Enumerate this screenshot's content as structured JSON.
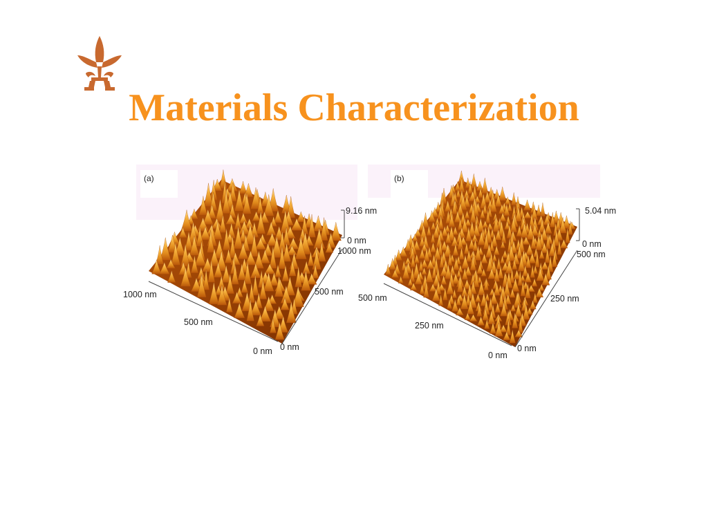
{
  "slide": {
    "title": "Materials Characterization",
    "title_color": "#F7921E",
    "logo": "maple-leaf-emblem",
    "logo_color": "#C8692F"
  },
  "figure": {
    "panel_a": {
      "label": "(a)",
      "z_max": "9.16 nm",
      "z_min": "0 nm",
      "axis_back": "1000 nm",
      "axis_right_mid": "500 nm",
      "axis_right_zero": "0 nm",
      "axis_left_end": "1000 nm",
      "axis_left_mid": "500 nm",
      "axis_left_zero": "0 nm"
    },
    "panel_b": {
      "label": "(b)",
      "z_max": "5.04 nm",
      "z_min": "0 nm",
      "axis_back": "500 nm",
      "axis_right_mid": "250 nm",
      "axis_right_zero": "0 nm",
      "axis_left_end": "500 nm",
      "axis_left_mid": "250 nm",
      "axis_left_zero": "0 nm"
    },
    "surface_colors": [
      "#7A2E00",
      "#B8560A",
      "#E08A1C",
      "#F7B541",
      "#FFE29A"
    ]
  }
}
